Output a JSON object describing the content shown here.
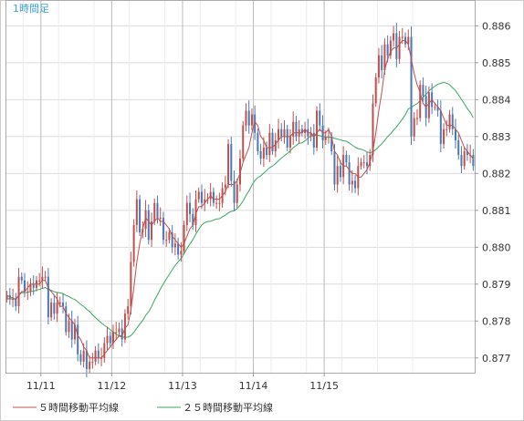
{
  "chart_data": {
    "type": "candlestick",
    "timeframe_label": "1時間足",
    "x_tick_labels": [
      "11/11",
      "11/12",
      "11/13",
      "11/14",
      "11/15"
    ],
    "y_tick_labels": [
      "0.877",
      "0.878",
      "0.879",
      "0.880",
      "0.881",
      "0.882",
      "0.883",
      "0.884",
      "0.885",
      "0.886"
    ],
    "ylim": [
      0.8766,
      0.8867
    ],
    "grid": true,
    "legend_position": "bottom-left",
    "legend": [
      {
        "label": "５時間移動平均線",
        "color": "#c0504d"
      },
      {
        "label": "２５時間移動平均線",
        "color": "#3aa860"
      }
    ],
    "colors": {
      "candle_up": "#c0504d",
      "candle_down": "#4a7ab5",
      "grid": "#dcdcdc",
      "axis": "#999999"
    },
    "series": {
      "close": [
        0.8787,
        0.8786,
        0.8786,
        0.8784,
        0.8792,
        0.8791,
        0.8788,
        0.8788,
        0.879,
        0.8789,
        0.8791,
        0.8791,
        0.8792,
        0.8792,
        0.8781,
        0.8785,
        0.8782,
        0.8785,
        0.8785,
        0.8784,
        0.8777,
        0.878,
        0.8775,
        0.8779,
        0.8771,
        0.8769,
        0.8772,
        0.8767,
        0.8769,
        0.8769,
        0.8772,
        0.877,
        0.877,
        0.8774,
        0.8776,
        0.8774,
        0.8777,
        0.8777,
        0.8778,
        0.8775,
        0.8782,
        0.8784,
        0.8796,
        0.8806,
        0.8813,
        0.8804,
        0.8805,
        0.881,
        0.8802,
        0.8807,
        0.8812,
        0.8808,
        0.8808,
        0.8802,
        0.8802,
        0.8804,
        0.88,
        0.8801,
        0.8798,
        0.8799,
        0.8806,
        0.8812,
        0.8809,
        0.8806,
        0.8813,
        0.8815,
        0.8812,
        0.8813,
        0.8813,
        0.8815,
        0.8812,
        0.8812,
        0.8812,
        0.8816,
        0.8817,
        0.8828,
        0.8818,
        0.8812,
        0.8817,
        0.8824,
        0.8833,
        0.8837,
        0.8833,
        0.8836,
        0.8831,
        0.8826,
        0.8824,
        0.8827,
        0.8825,
        0.8831,
        0.8826,
        0.8829,
        0.8832,
        0.883,
        0.8832,
        0.8827,
        0.883,
        0.8834,
        0.883,
        0.8832,
        0.8831,
        0.8832,
        0.883,
        0.8831,
        0.8827,
        0.8837,
        0.8833,
        0.8829,
        0.883,
        0.883,
        0.8826,
        0.8817,
        0.8822,
        0.8819,
        0.8825,
        0.8823,
        0.8817,
        0.8818,
        0.8816,
        0.8822,
        0.8823,
        0.8823,
        0.8822,
        0.8825,
        0.8839,
        0.8846,
        0.8852,
        0.8848,
        0.8855,
        0.8852,
        0.8856,
        0.8858,
        0.8851,
        0.8857,
        0.8857,
        0.8855,
        0.8857,
        0.883,
        0.8835,
        0.8835,
        0.8844,
        0.8841,
        0.8835,
        0.8842,
        0.8838,
        0.8838,
        0.8837,
        0.8828,
        0.8832,
        0.8832,
        0.8836,
        0.8832,
        0.8829,
        0.8825,
        0.8822,
        0.8826,
        0.8825,
        0.8825,
        0.8822
      ],
      "ma5": [
        0.8786,
        0.8786,
        0.8786,
        0.8786,
        0.8787,
        0.8788,
        0.8788,
        0.8789,
        0.879,
        0.879,
        0.879,
        0.879,
        0.8791,
        0.8791,
        0.8789,
        0.8788,
        0.8787,
        0.8786,
        0.8784,
        0.8784,
        0.8782,
        0.8781,
        0.878,
        0.8779,
        0.8776,
        0.8775,
        0.8773,
        0.8772,
        0.877,
        0.877,
        0.877,
        0.877,
        0.877,
        0.8771,
        0.8772,
        0.8773,
        0.8774,
        0.8775,
        0.8776,
        0.8776,
        0.8778,
        0.8779,
        0.8783,
        0.8789,
        0.8796,
        0.8801,
        0.8805,
        0.8808,
        0.8807,
        0.8806,
        0.8807,
        0.8808,
        0.8807,
        0.8807,
        0.8806,
        0.8805,
        0.8803,
        0.8802,
        0.8801,
        0.88,
        0.8801,
        0.8803,
        0.8805,
        0.8806,
        0.8809,
        0.8811,
        0.8811,
        0.8812,
        0.8813,
        0.8814,
        0.8813,
        0.8813,
        0.8813,
        0.8814,
        0.8815,
        0.8817,
        0.8817,
        0.8817,
        0.8818,
        0.882,
        0.8823,
        0.8825,
        0.8827,
        0.8831,
        0.8834,
        0.8833,
        0.883,
        0.8829,
        0.8827,
        0.8827,
        0.8827,
        0.8828,
        0.8829,
        0.883,
        0.883,
        0.883,
        0.883,
        0.8831,
        0.8831,
        0.8831,
        0.8831,
        0.8832,
        0.8831,
        0.8831,
        0.883,
        0.8831,
        0.8832,
        0.8831,
        0.8831,
        0.8832,
        0.883,
        0.8826,
        0.8825,
        0.8823,
        0.8822,
        0.8822,
        0.8821,
        0.882,
        0.882,
        0.8819,
        0.8819,
        0.882,
        0.8821,
        0.8823,
        0.8826,
        0.8831,
        0.8837,
        0.8842,
        0.8848,
        0.8851,
        0.8853,
        0.8854,
        0.8854,
        0.8855,
        0.8856,
        0.8856,
        0.8855,
        0.8851,
        0.8847,
        0.8844,
        0.8842,
        0.8839,
        0.8838,
        0.8839,
        0.884,
        0.8839,
        0.8838,
        0.8837,
        0.8835,
        0.8833,
        0.8833,
        0.8833,
        0.8832,
        0.8831,
        0.8829,
        0.8827,
        0.8826,
        0.8825,
        0.8824
      ]
    }
  }
}
